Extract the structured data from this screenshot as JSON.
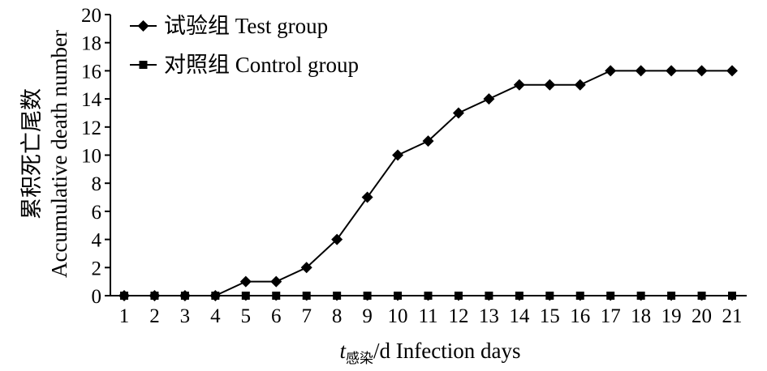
{
  "chart_data": {
    "type": "line",
    "x": [
      1,
      2,
      3,
      4,
      5,
      6,
      7,
      8,
      9,
      10,
      11,
      12,
      13,
      14,
      15,
      16,
      17,
      18,
      19,
      20,
      21
    ],
    "series": [
      {
        "name": "试验组 Test group",
        "marker": "diamond",
        "values": [
          0,
          0,
          0,
          0,
          1,
          1,
          2,
          4,
          7,
          10,
          11,
          13,
          14,
          15,
          15,
          15,
          16,
          16,
          16,
          16,
          16
        ]
      },
      {
        "name": "对照组 Control group",
        "marker": "square",
        "values": [
          0,
          0,
          0,
          0,
          0,
          0,
          0,
          0,
          0,
          0,
          0,
          0,
          0,
          0,
          0,
          0,
          0,
          0,
          0,
          0,
          0
        ]
      }
    ],
    "xlabel_main": "t",
    "xlabel_sub": "感染",
    "xlabel_rest": "/d Infection days",
    "ylabel_line1": "累积死亡尾数",
    "ylabel_line2": "Accumulative death number",
    "ylim": [
      0,
      20
    ],
    "yticks": [
      0,
      2,
      4,
      6,
      8,
      10,
      12,
      14,
      16,
      18,
      20
    ],
    "grid": false,
    "legend_position": "top-left",
    "line_color": "#000000"
  }
}
